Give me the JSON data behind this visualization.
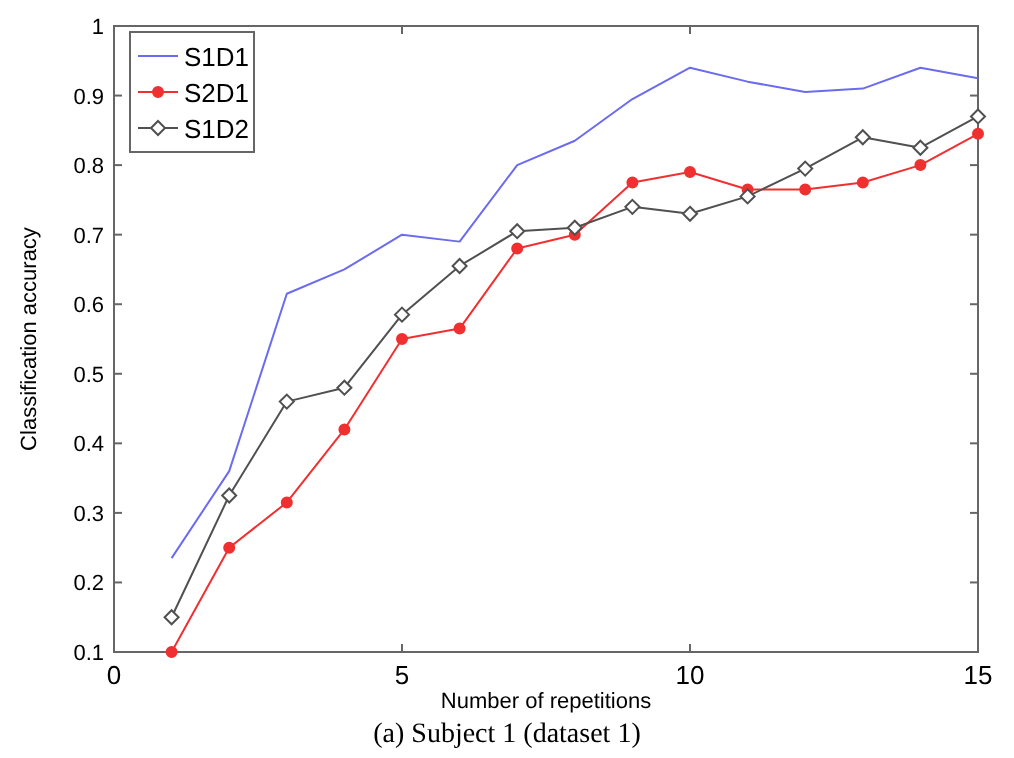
{
  "chart_data": {
    "type": "line",
    "xlabel": "Number of repetitions",
    "ylabel": "Classification accuracy",
    "annotations": [
      "(a) Subject 1 (dataset 1)"
    ],
    "x": [
      1,
      2,
      3,
      4,
      5,
      6,
      7,
      8,
      9,
      10,
      11,
      12,
      13,
      14,
      15
    ],
    "xlim": [
      0,
      15
    ],
    "xticks": [
      0,
      5,
      10,
      15
    ],
    "ylim": [
      0.1,
      1
    ],
    "yticks": [
      0.1,
      0.2,
      0.3,
      0.4,
      0.5,
      0.6,
      0.7,
      0.8,
      0.9,
      1
    ],
    "legend": "top left",
    "grid": false,
    "series": [
      {
        "name": "S1D1",
        "color": "#6b6bf0",
        "marker": "none",
        "values": [
          0.235,
          0.36,
          0.615,
          0.65,
          0.7,
          0.69,
          0.8,
          0.835,
          0.895,
          0.94,
          0.92,
          0.905,
          0.91,
          0.94,
          0.925
        ]
      },
      {
        "name": "S2D1",
        "color": "#f03030",
        "marker": "circle",
        "values": [
          0.1,
          0.25,
          0.315,
          0.42,
          0.55,
          0.565,
          0.68,
          0.7,
          0.775,
          0.79,
          0.765,
          0.765,
          0.775,
          0.8,
          0.845
        ]
      },
      {
        "name": "S1D2",
        "color": "#505050",
        "marker": "diamond",
        "values": [
          0.15,
          0.325,
          0.46,
          0.48,
          0.585,
          0.655,
          0.705,
          0.71,
          0.74,
          0.73,
          0.755,
          0.795,
          0.84,
          0.825,
          0.87
        ]
      }
    ]
  }
}
